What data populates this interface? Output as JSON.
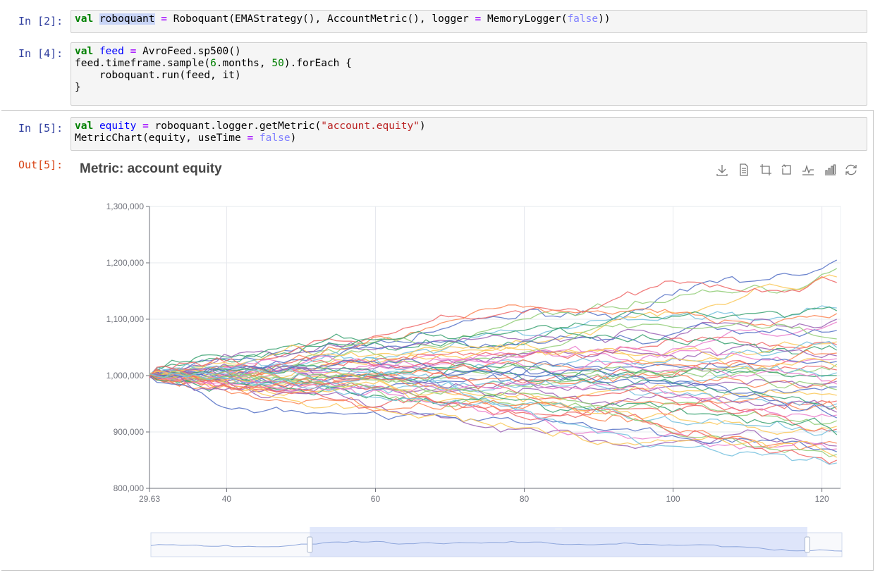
{
  "cells": [
    {
      "prompt": "In [2]:",
      "line1": {
        "kw": "val",
        "var": "roboquant",
        "op": "=",
        "rest1": "Roboquant(EMAStrategy(), AccountMetric(), logger ",
        "op2": "=",
        "rest2": " MemoryLogger(",
        "bool": "false",
        "rest3": "))"
      }
    },
    {
      "prompt": "In [4]:",
      "line1": {
        "kw": "val",
        "var": "feed",
        "op": "=",
        "rest": "AvroFeed.sp500()"
      },
      "line2": {
        "pre": "feed.timeframe.sample(",
        "num1": "6",
        "mid": ".months, ",
        "num2": "50",
        "post": ").forEach {"
      },
      "line3": "    roboquant.run(feed, it)",
      "line4": "}"
    },
    {
      "prompt": "In [5]:",
      "line1": {
        "kw": "val",
        "var": "equity",
        "op": "=",
        "pre": "roboquant.logger.getMetric(",
        "str": "\"account.equity\"",
        "post": ")"
      },
      "line2": {
        "pre": "MetricChart(equity, useTime ",
        "op": "=",
        "bool": "false",
        "post": ")"
      }
    }
  ],
  "output": {
    "prompt": "Out[5]:",
    "toolbox": [
      "download-icon",
      "data-view-icon",
      "zoom-icon",
      "zoom-reset-icon",
      "line-chart-icon",
      "bar-chart-icon",
      "restore-icon"
    ]
  },
  "chart_data": {
    "type": "line",
    "title": "Metric: account equity",
    "xlabel": "",
    "ylabel": "",
    "xlim": [
      29.63,
      122.5
    ],
    "ylim": [
      800000,
      1300000
    ],
    "x_tick_labels": [
      "29.63",
      "40",
      "60",
      "80",
      "100",
      "120"
    ],
    "y_tick_labels": [
      "800,000",
      "900,000",
      "1,000,000",
      "1,100,000",
      "1,200,000",
      "1,300,000"
    ],
    "grid": true,
    "legend": "none",
    "series_count": 50,
    "start_value": 1000000,
    "end_values_approx": [
      1205000,
      1190000,
      1175000,
      1165000,
      1120000,
      1115000,
      1110000,
      1100000,
      1095000,
      1080000,
      1065000,
      1060000,
      1055000,
      1050000,
      1045000,
      1040000,
      1035000,
      1030000,
      1025000,
      1020000,
      1015000,
      1010000,
      1005000,
      1000000,
      995000,
      990000,
      985000,
      980000,
      975000,
      965000,
      955000,
      950000,
      945000,
      940000,
      935000,
      930000,
      925000,
      920000,
      910000,
      905000,
      900000,
      895000,
      880000,
      875000,
      870000,
      865000,
      860000,
      855000,
      850000,
      845000
    ],
    "colors": [
      "#5470c6",
      "#91cc75",
      "#fac858",
      "#ee6666",
      "#73c0de",
      "#3ba272",
      "#fc8452",
      "#9a60b4",
      "#ea7ccc"
    ],
    "data_zoom": {
      "start_percent": 23,
      "end_percent": 95
    }
  }
}
